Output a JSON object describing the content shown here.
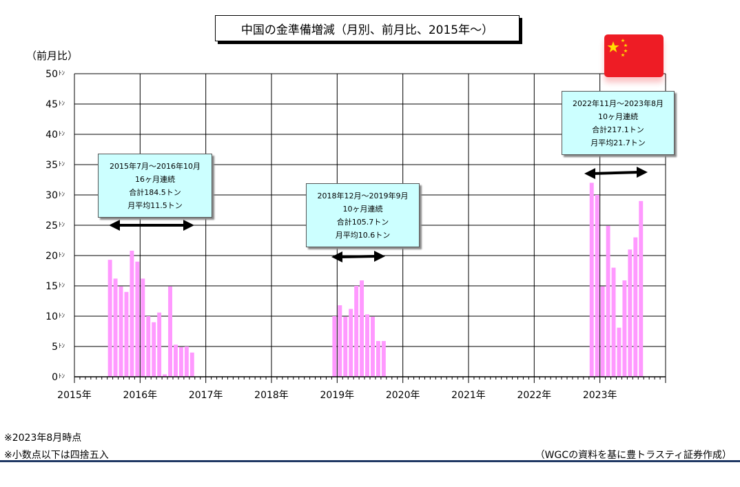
{
  "title": "中国の金準備増減（月別、前月比、2015年～）",
  "unit_label": "（前月比）",
  "notes": [
    "※2023年8月時点",
    "※小数点以下は四捨五入"
  ],
  "source": "（WGCの資料を基に豊トラスティ証券作成）",
  "flag_icon": "china-flag-icon",
  "colors": {
    "bar": "#ff99ff",
    "annotation_bg": "#ccffff",
    "flag_red": "#ee1c25",
    "flag_star": "#ffde00"
  },
  "annotations": [
    {
      "lines": [
        "2015年7月～2016年10月",
        "16ヶ月連続",
        "合計184.5トン",
        "月平均11.5トン"
      ]
    },
    {
      "lines": [
        "2018年12月～2019年9月",
        "10ヶ月連続",
        "合計105.7トン",
        "月平均10.6トン"
      ]
    },
    {
      "lines": [
        "2022年11月～2023年8月",
        "10ヶ月連続",
        "合計217.1トン",
        "月平均21.7トン"
      ]
    }
  ],
  "chart_data": {
    "type": "bar",
    "x_labels": [
      "2015年",
      "2016年",
      "2017年",
      "2018年",
      "2019年",
      "2020年",
      "2021年",
      "2022年",
      "2023年"
    ],
    "y_tick_labels": [
      "0ﾄﾝ",
      "5ﾄﾝ",
      "10ﾄﾝ",
      "15ﾄﾝ",
      "20ﾄﾝ",
      "25ﾄﾝ",
      "30ﾄﾝ",
      "35ﾄﾝ",
      "40ﾄﾝ",
      "45ﾄﾝ",
      "50ﾄﾝ"
    ],
    "ylim": [
      0,
      50
    ],
    "grid": true,
    "series": [
      {
        "values": [
          {
            "date": "2015-07",
            "value": 19.3
          },
          {
            "date": "2015-08",
            "value": 16.2
          },
          {
            "date": "2015-09",
            "value": 14.9
          },
          {
            "date": "2015-10",
            "value": 14.0
          },
          {
            "date": "2015-11",
            "value": 20.8
          },
          {
            "date": "2015-12",
            "value": 19.0
          },
          {
            "date": "2016-01",
            "value": 16.2
          },
          {
            "date": "2016-02",
            "value": 10.0
          },
          {
            "date": "2016-03",
            "value": 9.0
          },
          {
            "date": "2016-04",
            "value": 10.6
          },
          {
            "date": "2016-05",
            "value": 0.4
          },
          {
            "date": "2016-06",
            "value": 14.9
          },
          {
            "date": "2016-07",
            "value": 5.3
          },
          {
            "date": "2016-08",
            "value": 4.9
          },
          {
            "date": "2016-09",
            "value": 5.0
          },
          {
            "date": "2016-10",
            "value": 4.0
          },
          {
            "date": "2018-12",
            "value": 10.0
          },
          {
            "date": "2019-01",
            "value": 11.8
          },
          {
            "date": "2019-02",
            "value": 9.9
          },
          {
            "date": "2019-03",
            "value": 11.2
          },
          {
            "date": "2019-04",
            "value": 15.0
          },
          {
            "date": "2019-05",
            "value": 15.9
          },
          {
            "date": "2019-06",
            "value": 10.3
          },
          {
            "date": "2019-07",
            "value": 9.9
          },
          {
            "date": "2019-08",
            "value": 5.9
          },
          {
            "date": "2019-09",
            "value": 5.9
          },
          {
            "date": "2022-11",
            "value": 32.0
          },
          {
            "date": "2022-12",
            "value": 30.0
          },
          {
            "date": "2023-01",
            "value": 14.9
          },
          {
            "date": "2023-02",
            "value": 24.9
          },
          {
            "date": "2023-03",
            "value": 18.0
          },
          {
            "date": "2023-04",
            "value": 8.1
          },
          {
            "date": "2023-05",
            "value": 15.9
          },
          {
            "date": "2023-06",
            "value": 21.0
          },
          {
            "date": "2023-07",
            "value": 23.0
          },
          {
            "date": "2023-08",
            "value": 29.0
          }
        ]
      }
    ]
  }
}
